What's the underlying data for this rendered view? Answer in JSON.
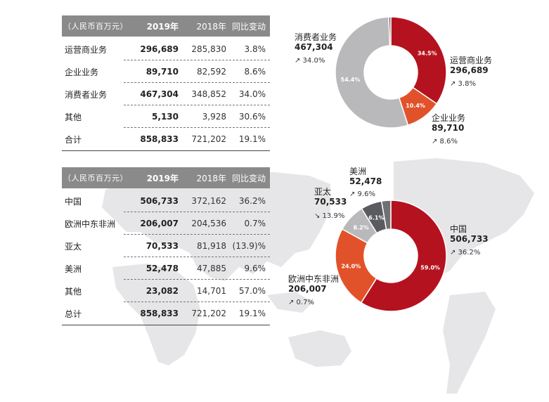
{
  "colors": {
    "carrier": "#b5121f",
    "enterprise": "#e2522a",
    "consumer": "#b9b9bb",
    "other": "#5a5b5e",
    "americas": "#5a5b5e",
    "header": "#8a8a8a",
    "map": "#e6e6e8"
  },
  "table1": {
    "header": [
      "（人民币百万元）",
      "2019年",
      "2018年",
      "同比变动"
    ],
    "rows": [
      [
        "运营商业务",
        "296,689",
        "285,830",
        "3.8%"
      ],
      [
        "企业业务",
        "89,710",
        "82,592",
        "8.6%"
      ],
      [
        "消费者业务",
        "467,304",
        "348,852",
        "34.0%"
      ],
      [
        "其他",
        "5,130",
        "3,928",
        "30.6%"
      ],
      [
        "合计",
        "858,833",
        "721,202",
        "19.1%"
      ]
    ]
  },
  "table2": {
    "header": [
      "（人民币百万元）",
      "2019年",
      "2018年",
      "同比变动"
    ],
    "rows": [
      [
        "中国",
        "506,733",
        "372,162",
        "36.2%"
      ],
      [
        "欧洲中东非洲",
        "206,007",
        "204,536",
        "0.7%"
      ],
      [
        "亚太",
        "70,533",
        "81,918",
        "(13.9)%"
      ],
      [
        "美洲",
        "52,478",
        "47,885",
        "9.6%"
      ],
      [
        "其他",
        "23,082",
        "14,701",
        "57.0%"
      ],
      [
        "总计",
        "858,833",
        "721,202",
        "19.1%"
      ]
    ]
  },
  "chart_data": [
    {
      "type": "pie",
      "donut": true,
      "slices": [
        {
          "label": "运营商业务",
          "value": 296689,
          "pct_label": "34.5%",
          "change": "3.8%",
          "color": "#b5121f"
        },
        {
          "label": "企业业务",
          "value": 89710,
          "pct_label": "10.4%",
          "change": "8.6%",
          "color": "#e2522a"
        },
        {
          "label": "消费者业务",
          "value": 467304,
          "pct_label": "54.4%",
          "change": "34.0%",
          "color": "#b9b9bb"
        },
        {
          "label": "其他",
          "value": 5130,
          "pct_label": "",
          "change": "",
          "color": "#5a5b5e"
        }
      ]
    },
    {
      "type": "pie",
      "donut": true,
      "slices": [
        {
          "label": "中国",
          "value": 506733,
          "pct_label": "59.0%",
          "change": "36.2%",
          "direction": "up",
          "color": "#b5121f"
        },
        {
          "label": "欧洲中东非洲",
          "value": 206007,
          "pct_label": "24.0%",
          "change": "0.7%",
          "direction": "up",
          "color": "#e2522a"
        },
        {
          "label": "亚太",
          "value": 70533,
          "pct_label": "8.2%",
          "change": "13.9%",
          "direction": "down",
          "color": "#b9b9bb"
        },
        {
          "label": "美洲",
          "value": 52478,
          "pct_label": "6.1%",
          "change": "9.6%",
          "direction": "up",
          "color": "#5a5b5e"
        },
        {
          "label": "其他",
          "value": 23082,
          "pct_label": "",
          "change": "",
          "color": "#707174"
        }
      ]
    }
  ],
  "labels1": [
    {
      "name": "消费者业务",
      "value": "467,304",
      "pct": "↗ 34.0%"
    },
    {
      "name": "运营商业务",
      "value": "296,689",
      "pct": "↗ 3.8%"
    },
    {
      "name": "企业业务",
      "value": "89,710",
      "pct": "↗ 8.6%"
    }
  ],
  "labels2": [
    {
      "name": "美洲",
      "value": "52,478",
      "pct": "↗ 9.6%"
    },
    {
      "name": "亚太",
      "value": "70,533",
      "pct": "↘ 13.9%"
    },
    {
      "name": "中国",
      "value": "506,733",
      "pct": "↗ 36.2%"
    },
    {
      "name": "欧洲中东非洲",
      "value": "206,007",
      "pct": "↗ 0.7%"
    }
  ]
}
